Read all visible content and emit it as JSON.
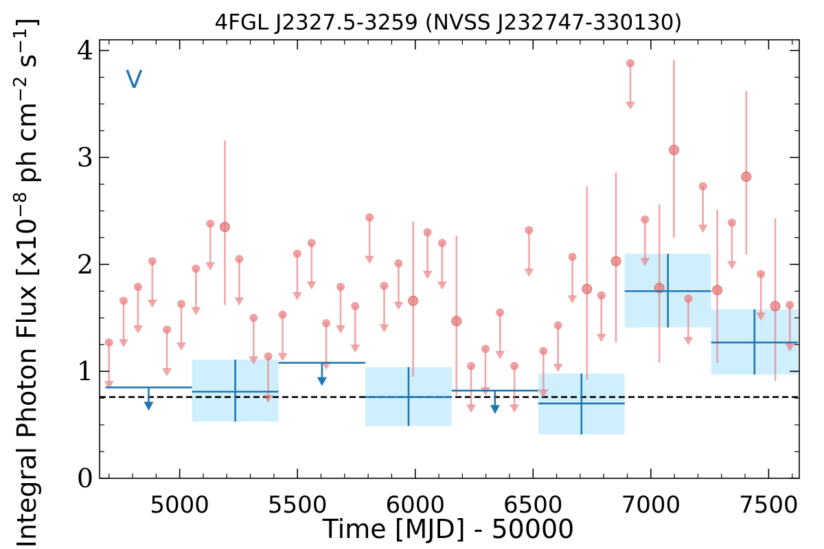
{
  "chart_data": {
    "type": "scatter",
    "title": "4FGL J2327.5-3259 (NVSS J232747-330130)",
    "xlabel": "Time [MJD] - 50000",
    "ylabel": "Integral Photon Flux [x10^-8 ph cm^-2 s^-1]",
    "ylabel_parts": {
      "prefix": "Integral Photon Flux [x10",
      "exp1": "−8",
      "mid1": " ph cm",
      "exp2": "−2",
      "mid2": " s",
      "exp3": "−1",
      "suffix": "]"
    },
    "panel_label": "V",
    "xlim": [
      4660,
      7630
    ],
    "ylim": [
      0,
      4.1
    ],
    "xticks": [
      5000,
      5500,
      6000,
      6500,
      7000,
      7500
    ],
    "xtick_labels": [
      "5000",
      "5500",
      "6000",
      "6500",
      "7000",
      "7500"
    ],
    "yticks": [
      0,
      1,
      2,
      3,
      4
    ],
    "ytick_labels": [
      "0",
      "1",
      "2",
      "3",
      "4"
    ],
    "reference_line": 0.76,
    "colors": {
      "short_bins": "#e8787a",
      "long_bins": "#1f77b4",
      "long_bins_fill": "#cdeefc",
      "reference": "#000000"
    },
    "short_bins": {
      "name": "",
      "upper_limits": [
        {
          "x": 4700,
          "y": 1.27
        },
        {
          "x": 4762,
          "y": 1.66
        },
        {
          "x": 4823,
          "y": 1.79
        },
        {
          "x": 4884,
          "y": 2.03
        },
        {
          "x": 4946,
          "y": 1.39
        },
        {
          "x": 5007,
          "y": 1.63
        },
        {
          "x": 5069,
          "y": 1.96
        },
        {
          "x": 5130,
          "y": 2.38
        },
        {
          "x": 5253,
          "y": 2.05
        },
        {
          "x": 5314,
          "y": 1.5
        },
        {
          "x": 5376,
          "y": 1.14
        },
        {
          "x": 5437,
          "y": 1.53
        },
        {
          "x": 5499,
          "y": 2.1
        },
        {
          "x": 5560,
          "y": 2.2
        },
        {
          "x": 5622,
          "y": 1.45
        },
        {
          "x": 5683,
          "y": 1.79
        },
        {
          "x": 5745,
          "y": 1.61
        },
        {
          "x": 5806,
          "y": 2.44
        },
        {
          "x": 5868,
          "y": 1.8
        },
        {
          "x": 5929,
          "y": 2.01
        },
        {
          "x": 6052,
          "y": 2.3
        },
        {
          "x": 6114,
          "y": 2.2
        },
        {
          "x": 6237,
          "y": 1.05
        },
        {
          "x": 6298,
          "y": 1.21
        },
        {
          "x": 6360,
          "y": 1.55
        },
        {
          "x": 6421,
          "y": 1.05
        },
        {
          "x": 6483,
          "y": 2.32
        },
        {
          "x": 6544,
          "y": 1.19
        },
        {
          "x": 6606,
          "y": 1.43
        },
        {
          "x": 6667,
          "y": 2.07
        },
        {
          "x": 6790,
          "y": 1.71
        },
        {
          "x": 6913,
          "y": 3.88
        },
        {
          "x": 6975,
          "y": 2.42
        },
        {
          "x": 7159,
          "y": 1.68
        },
        {
          "x": 7221,
          "y": 2.73
        },
        {
          "x": 7344,
          "y": 2.39
        },
        {
          "x": 7467,
          "y": 1.91
        },
        {
          "x": 7590,
          "y": 1.62
        }
      ],
      "detections": [
        {
          "x": 5192,
          "y": 2.35,
          "ylo": 1.62,
          "yhi": 3.16
        },
        {
          "x": 5991,
          "y": 1.66,
          "ylo": 0.95,
          "yhi": 2.4
        },
        {
          "x": 6175,
          "y": 1.47,
          "ylo": 0.78,
          "yhi": 2.27
        },
        {
          "x": 6729,
          "y": 1.77,
          "ylo": 0.92,
          "yhi": 2.73
        },
        {
          "x": 6852,
          "y": 2.03,
          "ylo": 1.27,
          "yhi": 2.86
        },
        {
          "x": 7036,
          "y": 1.78,
          "ylo": 1.08,
          "yhi": 2.56
        },
        {
          "x": 7098,
          "y": 3.07,
          "ylo": 2.25,
          "yhi": 3.91
        },
        {
          "x": 7282,
          "y": 1.76,
          "ylo": 1.08,
          "yhi": 2.51
        },
        {
          "x": 7405,
          "y": 2.82,
          "ylo": 2.09,
          "yhi": 3.62
        },
        {
          "x": 7528,
          "y": 1.61,
          "ylo": 0.91,
          "yhi": 2.43
        }
      ]
    },
    "long_bins": {
      "name": "",
      "upper_limits": [
        {
          "x0": 4685,
          "x1": 5052,
          "y": 0.85
        },
        {
          "x0": 5420,
          "x1": 5788,
          "y": 1.08
        },
        {
          "x0": 6155,
          "x1": 6522,
          "y": 0.82
        }
      ],
      "detections": [
        {
          "x0": 5052,
          "x1": 5420,
          "y": 0.81,
          "ylo": 0.53,
          "yhi": 1.11
        },
        {
          "x0": 5788,
          "x1": 6155,
          "y": 0.76,
          "ylo": 0.49,
          "yhi": 1.04
        },
        {
          "x0": 6522,
          "x1": 6889,
          "y": 0.7,
          "ylo": 0.41,
          "yhi": 0.98
        },
        {
          "x0": 6889,
          "x1": 7256,
          "y": 1.75,
          "ylo": 1.41,
          "yhi": 2.1
        },
        {
          "x0": 7256,
          "x1": 7624,
          "y": 1.27,
          "ylo": 0.97,
          "yhi": 1.58
        }
      ]
    }
  }
}
